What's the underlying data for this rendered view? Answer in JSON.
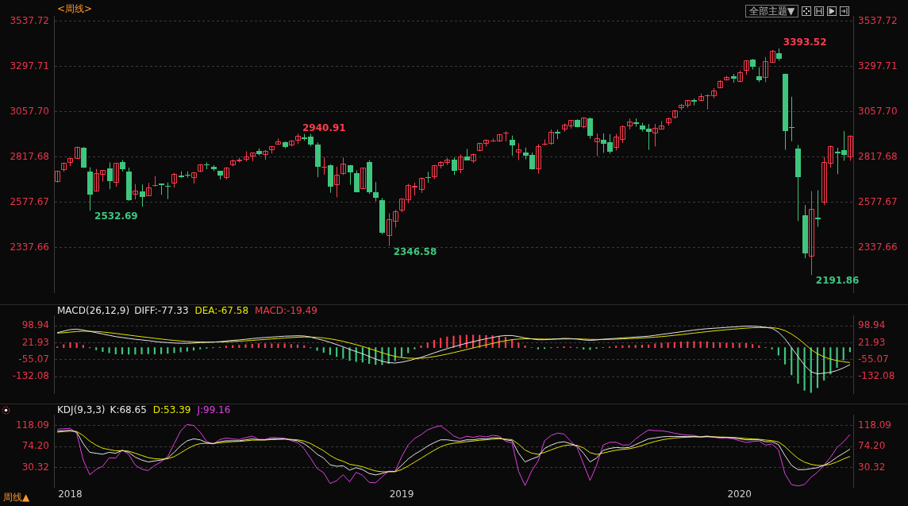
{
  "chart_data": [
    {
      "type": "candlestick",
      "title": "<周线>",
      "categories": [
        null,
        null,
        "2018",
        null,
        null,
        null,
        null,
        null,
        null,
        null,
        null,
        null,
        null,
        null,
        null,
        null,
        null,
        null,
        null,
        null,
        null,
        null,
        null,
        null,
        null,
        null,
        null,
        null,
        null,
        null,
        null,
        null,
        null,
        null,
        null,
        null,
        null,
        null,
        null,
        null,
        null,
        null,
        null,
        null,
        null,
        null,
        null,
        null,
        null,
        null,
        null,
        null,
        null,
        "2019",
        null,
        null,
        null,
        null,
        null,
        null,
        null,
        null,
        null,
        null,
        null,
        null,
        null,
        null,
        null,
        null,
        null,
        null,
        null,
        null,
        null,
        null,
        null,
        null,
        null,
        null,
        null,
        null,
        null,
        null,
        null,
        null,
        null,
        null,
        null,
        null,
        null,
        null,
        null,
        null,
        null,
        null,
        null,
        null,
        null,
        null,
        null,
        null,
        null,
        null,
        null,
        "2020",
        null,
        null,
        null,
        null,
        null,
        null,
        null,
        null,
        null,
        null,
        null,
        null,
        null,
        null,
        null,
        null,
        null
      ],
      "ohlc": [
        [
          2683.73,
          2743.45,
          2682.36,
          2743.15
        ],
        [
          2747.71,
          2787.85,
          2739.5,
          2786.24
        ],
        [
          2784.99,
          2810.33,
          2768.64,
          2810.3
        ],
        [
          2809.16,
          2872.87,
          2808.12,
          2872.87
        ],
        [
          2867.23,
          2870.62,
          2759.97,
          2762.13
        ],
        [
          2741.06,
          2763.39,
          2532.69,
          2619.55
        ],
        [
          2636.75,
          2754.42,
          2634.41,
          2732.22
        ],
        [
          2722.99,
          2747.76,
          2687.55,
          2747.3
        ],
        [
          2757.37,
          2789.15,
          2647.49,
          2691.25
        ],
        [
          2681.06,
          2786.57,
          2659.65,
          2786.57
        ],
        [
          2790.54,
          2801.9,
          2741.38,
          2752.01
        ],
        [
          2741.38,
          2761.85,
          2585.89,
          2588.26
        ],
        [
          2619.35,
          2674.78,
          2593.06,
          2640.87
        ],
        [
          2633.45,
          2672.08,
          2553.8,
          2604.47
        ],
        [
          2611.42,
          2680.26,
          2610.79,
          2656.3
        ],
        [
          2670.1,
          2717.49,
          2660.02,
          2670.14
        ],
        [
          2675.4,
          2677.35,
          2617.32,
          2669.91
        ],
        [
          2663.51,
          2682.92,
          2594.62,
          2663.42
        ],
        [
          2675.47,
          2732.86,
          2655.2,
          2727.72
        ],
        [
          2718.59,
          2742.1,
          2707.38,
          2712.97
        ],
        [
          2723.6,
          2742.24,
          2707.97,
          2721.33
        ],
        [
          2705.11,
          2736.93,
          2676.81,
          2734.62
        ],
        [
          2741.67,
          2779.9,
          2737.2,
          2779.03
        ],
        [
          2780.18,
          2789.06,
          2752.91,
          2779.42
        ],
        [
          2765.79,
          2774.99,
          2742.94,
          2754.88
        ],
        [
          2742.94,
          2743.26,
          2698.67,
          2718.37
        ],
        [
          2704.95,
          2763.4,
          2698.95,
          2759.82
        ],
        [
          2775.62,
          2804.53,
          2768.51,
          2801.31
        ],
        [
          2796.93,
          2814.19,
          2789.24,
          2801.83
        ],
        [
          2804.55,
          2848.03,
          2795.14,
          2818.82
        ],
        [
          2819,
          2840.38,
          2795.14,
          2840.35
        ],
        [
          2849.46,
          2863.43,
          2825.82,
          2833.28
        ],
        [
          2827.95,
          2855.63,
          2802.49,
          2850.13
        ],
        [
          2853.93,
          2876.16,
          2835.58,
          2874.69
        ],
        [
          2884.69,
          2916.5,
          2884.69,
          2901.52
        ],
        [
          2898.37,
          2900.18,
          2864.12,
          2871.68
        ],
        [
          2881.39,
          2906.32,
          2874.27,
          2904.98
        ],
        [
          2903.83,
          2940.91,
          2886.16,
          2929.67
        ],
        [
          2921.83,
          2939.86,
          2904.77,
          2913.98
        ],
        [
          2926.29,
          2939.86,
          2874.68,
          2885.57
        ],
        [
          2882.51,
          2894.83,
          2710.51,
          2767.13
        ],
        [
          2763.83,
          2816.94,
          2724.44,
          2767.78
        ],
        [
          2773.87,
          2778.94,
          2628.16,
          2658.69
        ],
        [
          2667.86,
          2766.91,
          2603.54,
          2723.06
        ],
        [
          2726.37,
          2815.15,
          2722.25,
          2781.01
        ],
        [
          2773.93,
          2775.99,
          2670.75,
          2736.27
        ],
        [
          2730.05,
          2746.75,
          2631.09,
          2632.56
        ],
        [
          2649.97,
          2760.88,
          2649.97,
          2760.17
        ],
        [
          2790.5,
          2800.18,
          2621.53,
          2633.08
        ],
        [
          2630.86,
          2685.44,
          2583.23,
          2599.95
        ],
        [
          2590.75,
          2601.13,
          2408.55,
          2416.62
        ],
        [
          2400.56,
          2520.27,
          2346.58,
          2485.74
        ],
        [
          2476.96,
          2538.07,
          2443.96,
          2531.94
        ],
        [
          2535.61,
          2597.82,
          2524.56,
          2596.26
        ],
        [
          2588.11,
          2675.47,
          2574.15,
          2670.71
        ],
        [
          2657.88,
          2681.83,
          2612.86,
          2664.76
        ],
        [
          2644.89,
          2708.95,
          2627.59,
          2706.53
        ],
        [
          2712.4,
          2739.48,
          2681.83,
          2707.88
        ],
        [
          2712.66,
          2775.66,
          2701.04,
          2775.6
        ],
        [
          2769.28,
          2795.4,
          2757.07,
          2792.67
        ],
        [
          2788.11,
          2813.49,
          2775.13,
          2803.69
        ],
        [
          2805.77,
          2816.88,
          2722.27,
          2743.07
        ],
        [
          2747.61,
          2830.73,
          2732.52,
          2822.48
        ],
        [
          2822.61,
          2860.31,
          2800.47,
          2800.71
        ],
        [
          2796.01,
          2836.03,
          2785.68,
          2834.4
        ],
        [
          2848.63,
          2893.42,
          2848.63,
          2892.74
        ],
        [
          2888.32,
          2910.54,
          2873.33,
          2907.41
        ],
        [
          2904.81,
          2916.06,
          2898.78,
          2905.03
        ],
        [
          2898.78,
          2939.88,
          2898.78,
          2939.88
        ],
        [
          2940.58,
          2954.13,
          2900.5,
          2945.64
        ],
        [
          2908.89,
          2931.3,
          2825.39,
          2881.4
        ],
        [
          2840.19,
          2891.31,
          2801.43,
          2859.53
        ],
        [
          2841.94,
          2867.56,
          2805.49,
          2826.06
        ],
        [
          2830.03,
          2841.36,
          2750.52,
          2752.06
        ],
        [
          2751.53,
          2885.83,
          2728.81,
          2873.34
        ],
        [
          2885.83,
          2910.61,
          2878.53,
          2886.98
        ],
        [
          2886.82,
          2964.15,
          2882.32,
          2950.46
        ],
        [
          2952.71,
          2964,
          2912.66,
          2941.76
        ],
        [
          2964.66,
          2995.84,
          2952.22,
          2990.41
        ],
        [
          2979.77,
          3013.92,
          2968.42,
          3013.77
        ],
        [
          3014.78,
          3017.8,
          2975.07,
          2976.61
        ],
        [
          2977.97,
          3027.98,
          2969.97,
          3025.86
        ],
        [
          3024.47,
          3027.98,
          2914.8,
          2932.05
        ],
        [
          2898.07,
          2943.31,
          2822.12,
          2918.65
        ],
        [
          2907.07,
          2943.31,
          2839.81,
          2888.68
        ],
        [
          2898.43,
          2939.08,
          2834.97,
          2847.11
        ],
        [
          2866.7,
          2940.43,
          2853.05,
          2926.46
        ],
        [
          2909.01,
          2985.86,
          2891.85,
          2978.71
        ],
        [
          2980.76,
          3021.99,
          2964.15,
          3007.39
        ],
        [
          3001.5,
          3022.45,
          2978.87,
          2992.07
        ],
        [
          2983.5,
          2999.15,
          2952.86,
          2961.79
        ],
        [
          2967.07,
          2992.53,
          2855.94,
          2952.01
        ],
        [
          2944.23,
          2993.28,
          2873.8,
          2970.27
        ],
        [
          2965.81,
          3008.29,
          2963.6,
          2986.2
        ],
        [
          2996.48,
          3027.39,
          2984.49,
          3022.55
        ],
        [
          3028.65,
          3066.95,
          3020.24,
          3066.91
        ],
        [
          3078.96,
          3097.77,
          3066.91,
          3093.08
        ],
        [
          3089.28,
          3120.46,
          3078.44,
          3120.46
        ],
        [
          3117.91,
          3127.64,
          3091.41,
          3110.29
        ],
        [
          3117.44,
          3154.26,
          3117.44,
          3140.98
        ],
        [
          3143.85,
          3150.6,
          3070.33,
          3145.91
        ],
        [
          3141.86,
          3182.68,
          3130,
          3168.8
        ],
        [
          3183.63,
          3225.65,
          3183.63,
          3221.22
        ],
        [
          3225.45,
          3247.93,
          3223.45,
          3240.02
        ],
        [
          3247.23,
          3258.14,
          3212.03,
          3234.85
        ],
        [
          3217.55,
          3275.58,
          3214.64,
          3265.35
        ],
        [
          3273.4,
          3329.88,
          3253.22,
          3329.62
        ],
        [
          3333.1,
          3337.77,
          3281.53,
          3295.47
        ],
        [
          3247.16,
          3293.47,
          3214.68,
          3225.52
        ],
        [
          3235.66,
          3347.96,
          3214.25,
          3327.71
        ],
        [
          3318.28,
          3385.09,
          3317.77,
          3380.16
        ],
        [
          3369.04,
          3393.52,
          3328.45,
          3337.75
        ],
        [
          3257.61,
          3259.81,
          2855.84,
          2954.22
        ],
        [
          2974.28,
          3136.72,
          2901.54,
          2972.37
        ],
        [
          2863.89,
          2882.59,
          2478.86,
          2711.02
        ],
        [
          2508.59,
          2562.98,
          2280.52,
          2304.92
        ],
        [
          2290.71,
          2637.01,
          2191.86,
          2541.47
        ],
        [
          2498.08,
          2641.39,
          2447.49,
          2488.65
        ],
        [
          2578.28,
          2818.57,
          2562.98,
          2789.82
        ],
        [
          2782.46,
          2879.22,
          2761.52,
          2874.56
        ],
        [
          2845.62,
          2867.05,
          2727.1,
          2836.74
        ],
        [
          2854.65,
          2954.86,
          2797.85,
          2830.71
        ],
        [
          2815.01,
          2932.16,
          2797.85,
          2929.8
        ]
      ],
      "ylim": [
        2097,
        3566
      ],
      "yticks": [
        2337.66,
        2577.67,
        2817.68,
        {
          "value": 3057.7,
          "label": "3057.70"
        },
        3297.71,
        3537.72
      ],
      "y2lim": [
        2097,
        3566
      ],
      "y2ticks": [
        2337.66,
        2577.67,
        2817.68,
        {
          "value": 3057.7,
          "label": "3057.70"
        },
        3297.71,
        3537.72
      ],
      "grid": "y",
      "tick_labels": "y",
      "value_labels": [
        null,
        null,
        null,
        null,
        null,
        "2532.69",
        null,
        null,
        null,
        null,
        null,
        null,
        null,
        null,
        null,
        null,
        null,
        null,
        null,
        null,
        null,
        null,
        null,
        null,
        null,
        null,
        null,
        null,
        null,
        null,
        null,
        null,
        null,
        null,
        null,
        null,
        null,
        "2940.91",
        null,
        null,
        null,
        null,
        null,
        null,
        null,
        null,
        null,
        null,
        null,
        null,
        null,
        "2346.58",
        null,
        null,
        null,
        null,
        null,
        null,
        null,
        null,
        null,
        null,
        null,
        null,
        null,
        null,
        null,
        null,
        null,
        null,
        null,
        null,
        null,
        null,
        null,
        null,
        null,
        null,
        null,
        null,
        null,
        null,
        null,
        null,
        null,
        null,
        null,
        null,
        null,
        null,
        null,
        null,
        null,
        null,
        null,
        null,
        null,
        null,
        null,
        null,
        null,
        null,
        null,
        null,
        null,
        null,
        null,
        null,
        null,
        null,
        null,
        "3393.52",
        null,
        null,
        null,
        null,
        "2191.86",
        null,
        null,
        null,
        null,
        null,
        null
      ],
      "annotations": [
        "全部主题▼"
      ]
    },
    {
      "type": "line",
      "title": "MACD(26,12,9)",
      "categories": [
        null,
        null,
        "2018",
        null,
        null,
        null,
        null,
        null,
        null,
        null,
        null,
        null,
        null,
        null,
        null,
        null,
        null,
        null,
        null,
        null,
        null,
        null,
        null,
        null,
        null,
        null,
        null,
        null,
        null,
        null,
        null,
        null,
        null,
        null,
        null,
        null,
        null,
        null,
        null,
        null,
        null,
        null,
        null,
        null,
        null,
        null,
        null,
        null,
        null,
        null,
        null,
        null,
        null,
        "2019",
        null,
        null,
        null,
        null,
        null,
        null,
        null,
        null,
        null,
        null,
        null,
        null,
        null,
        null,
        null,
        null,
        null,
        null,
        null,
        null,
        null,
        null,
        null,
        null,
        null,
        null,
        null,
        null,
        null,
        null,
        null,
        null,
        null,
        null,
        null,
        null,
        null,
        null,
        null,
        null,
        null,
        null,
        null,
        null,
        null,
        null,
        null,
        null,
        null,
        null,
        null,
        "2020",
        null,
        null,
        null,
        null,
        null,
        null,
        null,
        null,
        null,
        null,
        null,
        null,
        null,
        null,
        null,
        null,
        null
      ],
      "series": [
        {
          "name": "DIFF:-77.33",
          "type": "line",
          "color": "#e6e6e6",
          "values": [
            68,
            75,
            82,
            84,
            80,
            74,
            68,
            62,
            56,
            50,
            46,
            42,
            38,
            35,
            32,
            28,
            25,
            23,
            21,
            20,
            20,
            21,
            23,
            24,
            25,
            27,
            30,
            33,
            35,
            38,
            41,
            44,
            46,
            48,
            50,
            52,
            53,
            54,
            53,
            48,
            40,
            33,
            24,
            14,
            4,
            -8,
            -18,
            -28,
            -40,
            -52,
            -62,
            -68,
            -70,
            -66,
            -60,
            -52,
            -44,
            -34,
            -24,
            -14,
            -5,
            4,
            12,
            20,
            27,
            34,
            40,
            46,
            52,
            55,
            55,
            50,
            44,
            40,
            36,
            36,
            38,
            40,
            42,
            41,
            39,
            35,
            33,
            35,
            38,
            40,
            42,
            44,
            46,
            48,
            50,
            52,
            56,
            60,
            64,
            68,
            72,
            76,
            80,
            83,
            86,
            88,
            90,
            92,
            94,
            96,
            98,
            98,
            96,
            92,
            88,
            70,
            40,
            0,
            -40,
            -80,
            -110,
            -119,
            -116,
            -112,
            -104,
            -92,
            -77.33
          ]
        },
        {
          "name": "DEA:-67.58",
          "type": "line",
          "color": "#e6e600",
          "values": [
            66,
            67.8,
            70.6,
            73.3,
            74.6,
            74.5,
            73.2,
            71,
            68,
            64.4,
            60.7,
            57,
            53.2,
            49.6,
            46.1,
            42.5,
            39,
            35.8,
            32.8,
            30.2,
            28.2,
            26.8,
            26,
            25.6,
            25.5,
            25.8,
            26.6,
            27.9,
            29.3,
            31,
            33,
            35.2,
            37.4,
            39.5,
            41.6,
            43.7,
            45.6,
            47.3,
            48.4,
            48.3,
            46.6,
            43.9,
            39.9,
            34.7,
            28.6,
            21.3,
            13.4,
            5.1,
            -3.9,
            -13.5,
            -23.2,
            -32.2,
            -39.8,
            -45,
            -48,
            -48.8,
            -47.8,
            -45,
            -40.8,
            -35.4,
            -29.3,
            -22.6,
            -15.7,
            -8.6,
            -1.5,
            5.6,
            12.5,
            19.2,
            25.8,
            31.6,
            36.3,
            39,
            40,
            40,
            39.2,
            38.6,
            38.5,
            38.8,
            39.4,
            39.7,
            39.6,
            38.7,
            37.6,
            37.1,
            37.3,
            37.8,
            38.6,
            39.7,
            41,
            42.4,
            43.9,
            45.5,
            47.6,
            50.1,
            52.9,
            55.9,
            59.1,
            62.5,
            66,
            69.4,
            72.7,
            75.8,
            78.6,
            81.3,
            83.8,
            86.2,
            88.6,
            90.5,
            91.6,
            91.7,
            91,
            86.8,
            77.4,
            61.9,
            41.5,
            17.2,
            -8.2,
            -28,
            -42,
            -52,
            -59,
            -64,
            -67.58
          ]
        },
        {
          "name": "MACD:-19.49",
          "type": "bar",
          "color": "#ff3b4e",
          "values": [
            4,
            14,
            23,
            21,
            11,
            null,
            null,
            null,
            null,
            null,
            null,
            null,
            null,
            null,
            null,
            null,
            null,
            null,
            null,
            null,
            null,
            null,
            null,
            null,
            null,
            2,
            7,
            10,
            11,
            14,
            16,
            18,
            17,
            17,
            17,
            17,
            15,
            13,
            9,
            null,
            null,
            null,
            null,
            null,
            null,
            null,
            null,
            null,
            null,
            null,
            null,
            null,
            null,
            null,
            null,
            null,
            8,
            22,
            34,
            43,
            49,
            53,
            55,
            57,
            57,
            57,
            55,
            54,
            52,
            47,
            37,
            22,
            8,
            0,
            null,
            null,
            null,
            2,
            5,
            3,
            null,
            null,
            null,
            null,
            1,
            4,
            7,
            9,
            10,
            11,
            12,
            13,
            17,
            20,
            22,
            24,
            26,
            27,
            28,
            27,
            27,
            24,
            23,
            21,
            20,
            20,
            19,
            15,
            9,
            1,
            null,
            null,
            null,
            null,
            null,
            null,
            null,
            null,
            null,
            null,
            null,
            null,
            null
          ]
        },
        {
          "type": "bar",
          "color": "#3ec67f",
          "values": [
            null,
            null,
            null,
            null,
            null,
            -1,
            -10,
            -18,
            -24,
            -29,
            -29,
            -30,
            -30,
            -29,
            -28,
            -29,
            -28,
            -26,
            -24,
            -20,
            -16,
            -12,
            -6,
            -3,
            -1,
            null,
            null,
            null,
            null,
            null,
            null,
            null,
            null,
            null,
            null,
            null,
            null,
            null,
            null,
            -1,
            -13,
            -22,
            -32,
            -41,
            -49,
            -59,
            -63,
            -66,
            -72,
            -77,
            -78,
            -72,
            -60,
            -42,
            -24,
            -6,
            null,
            null,
            null,
            null,
            null,
            null,
            null,
            null,
            null,
            null,
            null,
            null,
            null,
            null,
            null,
            null,
            null,
            null,
            -6,
            -5,
            -1,
            null,
            null,
            null,
            -1,
            -7,
            -9,
            -4,
            null,
            null,
            null,
            null,
            null,
            null,
            null,
            null,
            null,
            null,
            null,
            null,
            null,
            null,
            null,
            null,
            null,
            null,
            null,
            null,
            null,
            null,
            null,
            null,
            null,
            null,
            -6,
            -34,
            -75,
            -124,
            -163,
            -194,
            -204,
            -182,
            -148,
            -120,
            -90,
            -56,
            -19.49
          ]
        }
      ],
      "ylim": [
        -210,
        146
      ],
      "yticks": [
        -132.08,
        -55.07,
        21.93,
        98.94
      ],
      "y2lim": [
        -210,
        146
      ],
      "y2ticks": [
        -132.08,
        -55.07,
        21.93,
        98.94
      ],
      "grid": "y",
      "tick_labels": "y",
      "legend": "top left"
    },
    {
      "type": "line",
      "title": "KDJ(9,3,3)",
      "categories": [
        null,
        null,
        "2018",
        null,
        null,
        null,
        null,
        null,
        null,
        null,
        null,
        null,
        null,
        null,
        null,
        null,
        null,
        null,
        null,
        null,
        null,
        null,
        null,
        null,
        null,
        null,
        null,
        null,
        null,
        null,
        null,
        null,
        null,
        null,
        null,
        null,
        null,
        null,
        null,
        null,
        null,
        null,
        null,
        null,
        null,
        null,
        null,
        null,
        null,
        null,
        null,
        null,
        null,
        "2019",
        null,
        null,
        null,
        null,
        null,
        null,
        null,
        null,
        null,
        null,
        null,
        null,
        null,
        null,
        null,
        null,
        null,
        null,
        null,
        null,
        null,
        null,
        null,
        null,
        null,
        null,
        null,
        null,
        null,
        null,
        null,
        null,
        null,
        null,
        null,
        null,
        null,
        null,
        null,
        null,
        null,
        null,
        null,
        null,
        null,
        null,
        null,
        null,
        null,
        null,
        null,
        "2020",
        null,
        null,
        null,
        null,
        null,
        null,
        null,
        null,
        null,
        null,
        null,
        null,
        null,
        null,
        null,
        null,
        null
      ],
      "series": [
        {
          "name": "K:68.65",
          "color": "#e6e6e6",
          "values": [
            106,
            107,
            108,
            104,
            80,
            62,
            60,
            58,
            62,
            60,
            66,
            62,
            52,
            46,
            42,
            44,
            46,
            50,
            62,
            76,
            86,
            90,
            88,
            82,
            80,
            84,
            86,
            86,
            86,
            88,
            90,
            88,
            88,
            90,
            90,
            90,
            88,
            86,
            80,
            70,
            58,
            50,
            36,
            33,
            34,
            25,
            30,
            26,
            18,
            15,
            18,
            22,
            22,
            35,
            48,
            58,
            66,
            75,
            82,
            88,
            88,
            86,
            85,
            88,
            88,
            90,
            90,
            92,
            92,
            88,
            86,
            60,
            42,
            48,
            53,
            70,
            77,
            82,
            84,
            80,
            75,
            60,
            42,
            50,
            66,
            70,
            72,
            71,
            72,
            78,
            84,
            90,
            92,
            94,
            95,
            95,
            95,
            95,
            95,
            94,
            95,
            94,
            93,
            93,
            92,
            90,
            88,
            88,
            88,
            84,
            84,
            78,
            55,
            35,
            26,
            26,
            28,
            30,
            35,
            42,
            52,
            60,
            68.65
          ]
        },
        {
          "name": "D:53.39",
          "color": "#e6e600",
          "values": [
            104,
            105,
            106,
            105.3,
            96.9,
            85.3,
            76.8,
            70.5,
            67.7,
            65.1,
            65.4,
            64.3,
            60.2,
            55.5,
            51,
            48.7,
            47.8,
            48.5,
            53,
            60.7,
            69.1,
            76.1,
            80.1,
            80.7,
            80.5,
            81.7,
            83.1,
            84.1,
            84.7,
            85.8,
            87.2,
            87.5,
            87.6,
            88.4,
            88.9,
            89.3,
            88.9,
            87.9,
            85.3,
            80.2,
            72.8,
            65.2,
            55.5,
            48,
            43.3,
            37.2,
            34.8,
            31.9,
            27.3,
            23.2,
            21.5,
            21.6,
            21.7,
            26.1,
            33.4,
            41.6,
            49.7,
            58.1,
            66.1,
            73.4,
            78.3,
            80.9,
            82.3,
            84.2,
            85.5,
            87,
            88,
            89.3,
            90.2,
            89.5,
            88.3,
            78.9,
            66.6,
            60.4,
            57.9,
            61.9,
            67,
            72,
            76,
            77.3,
            76.5,
            71,
            61.3,
            57.6,
            60.4,
            63.6,
            66.4,
            67.9,
            69.3,
            72.2,
            76.1,
            80.7,
            84.5,
            87.7,
            90.1,
            91.7,
            92.8,
            93.5,
            94,
            94,
            94.3,
            94.2,
            93.8,
            93.5,
            93,
            92,
            90.7,
            89.8,
            89.2,
            87.5,
            86.3,
            83.5,
            74,
            61,
            49.3,
            41.5,
            37,
            34.7,
            34.8,
            37.2,
            42.1,
            48.1,
            53.39
          ]
        },
        {
          "name": "J:99.16",
          "color": "#e040e0",
          "values": [
            110,
            111,
            112,
            101.4,
            46.2,
            15.4,
            26.4,
            33,
            50.6,
            49.8,
            67.2,
            57.4,
            35.6,
            27,
            24,
            34.6,
            42.4,
            53,
            80,
            106.6,
            119.8,
            117.8,
            103.8,
            84.6,
            79,
            88.6,
            91.8,
            89.8,
            88.6,
            92.4,
            95.6,
            89,
            88.8,
            93.2,
            92.2,
            91.4,
            86.2,
            82.2,
            69.4,
            49.6,
            28.4,
            19.6,
            -3,
            3,
            15.4,
            0.6,
            20.4,
            14.2,
            -0.6,
            -1.4,
            11,
            22.8,
            22.6,
            52.8,
            77.2,
            90.8,
            98.6,
            108.8,
            113.8,
            117.2,
            107.4,
            96.2,
            90.4,
            95.6,
            93,
            96,
            94,
            97.4,
            95.6,
            85,
            81.4,
            22.2,
            -7.2,
            23.2,
            43.2,
            86.2,
            97,
            102,
            100,
            85.4,
            72,
            38,
            3.4,
            34.8,
            77.2,
            82.8,
            83.2,
            77.2,
            77.4,
            89.6,
            99.8,
            108.6,
            107,
            106.6,
            104.8,
            101.6,
            99.4,
            98,
            97,
            94,
            96.4,
            93.6,
            91.4,
            92,
            90,
            86,
            82.6,
            84.4,
            85.6,
            77,
            79.4,
            67,
            17,
            -5,
            -8,
            -5,
            10,
            20.6,
            35.4,
            51.6,
            71.8,
            83.8,
            99.16
          ]
        }
      ],
      "ylim": [
        -10,
        140
      ],
      "yticks": [
        30.32,
        {
          "value": 74.2,
          "label": "74.20"
        },
        118.09
      ],
      "y2lim": [
        -10,
        140
      ],
      "y2ticks": [
        30.32,
        {
          "value": 74.2,
          "label": "74.20"
        },
        118.09
      ],
      "grid": "y",
      "legend": "top left",
      "annotations": [
        "周线▲"
      ]
    }
  ]
}
